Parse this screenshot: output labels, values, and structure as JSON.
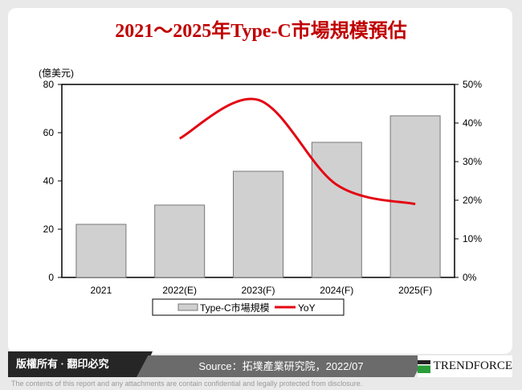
{
  "title": "2021～2025年Type-C市場規模預估",
  "chart_data": {
    "type": "bar+line",
    "title": "2021～2025年Type-C市場規模預估",
    "ylabel": "(億美元)",
    "categories": [
      "2021",
      "2022(E)",
      "2023(F)",
      "2024(F)",
      "2025(F)"
    ],
    "ylim": [
      0,
      80
    ],
    "yticks": [
      "0",
      "20",
      "40",
      "60",
      "80"
    ],
    "y2lim": [
      0,
      50
    ],
    "y2ticks": [
      "0%",
      "10%",
      "20%",
      "30%",
      "40%",
      "50%"
    ],
    "series": [
      {
        "name": "Type-C市場規模",
        "type": "bar",
        "axis": "left",
        "color": "#d0d0d0",
        "values": [
          22,
          30,
          44,
          56,
          67
        ]
      },
      {
        "name": "YoY",
        "type": "line",
        "axis": "right",
        "color": "#e30613",
        "values": [
          null,
          36,
          46,
          24,
          19
        ]
      }
    ],
    "legend": "bottom",
    "grid": false
  },
  "footer": {
    "copyright": "版權所有 · 翻印必究",
    "source": "Source：拓墣產業研究院，2022/07",
    "brand": "TRENDFORCE",
    "disclaimer": "The contents of this report and any attachments are contain confidential and legally protected from disclosure."
  }
}
